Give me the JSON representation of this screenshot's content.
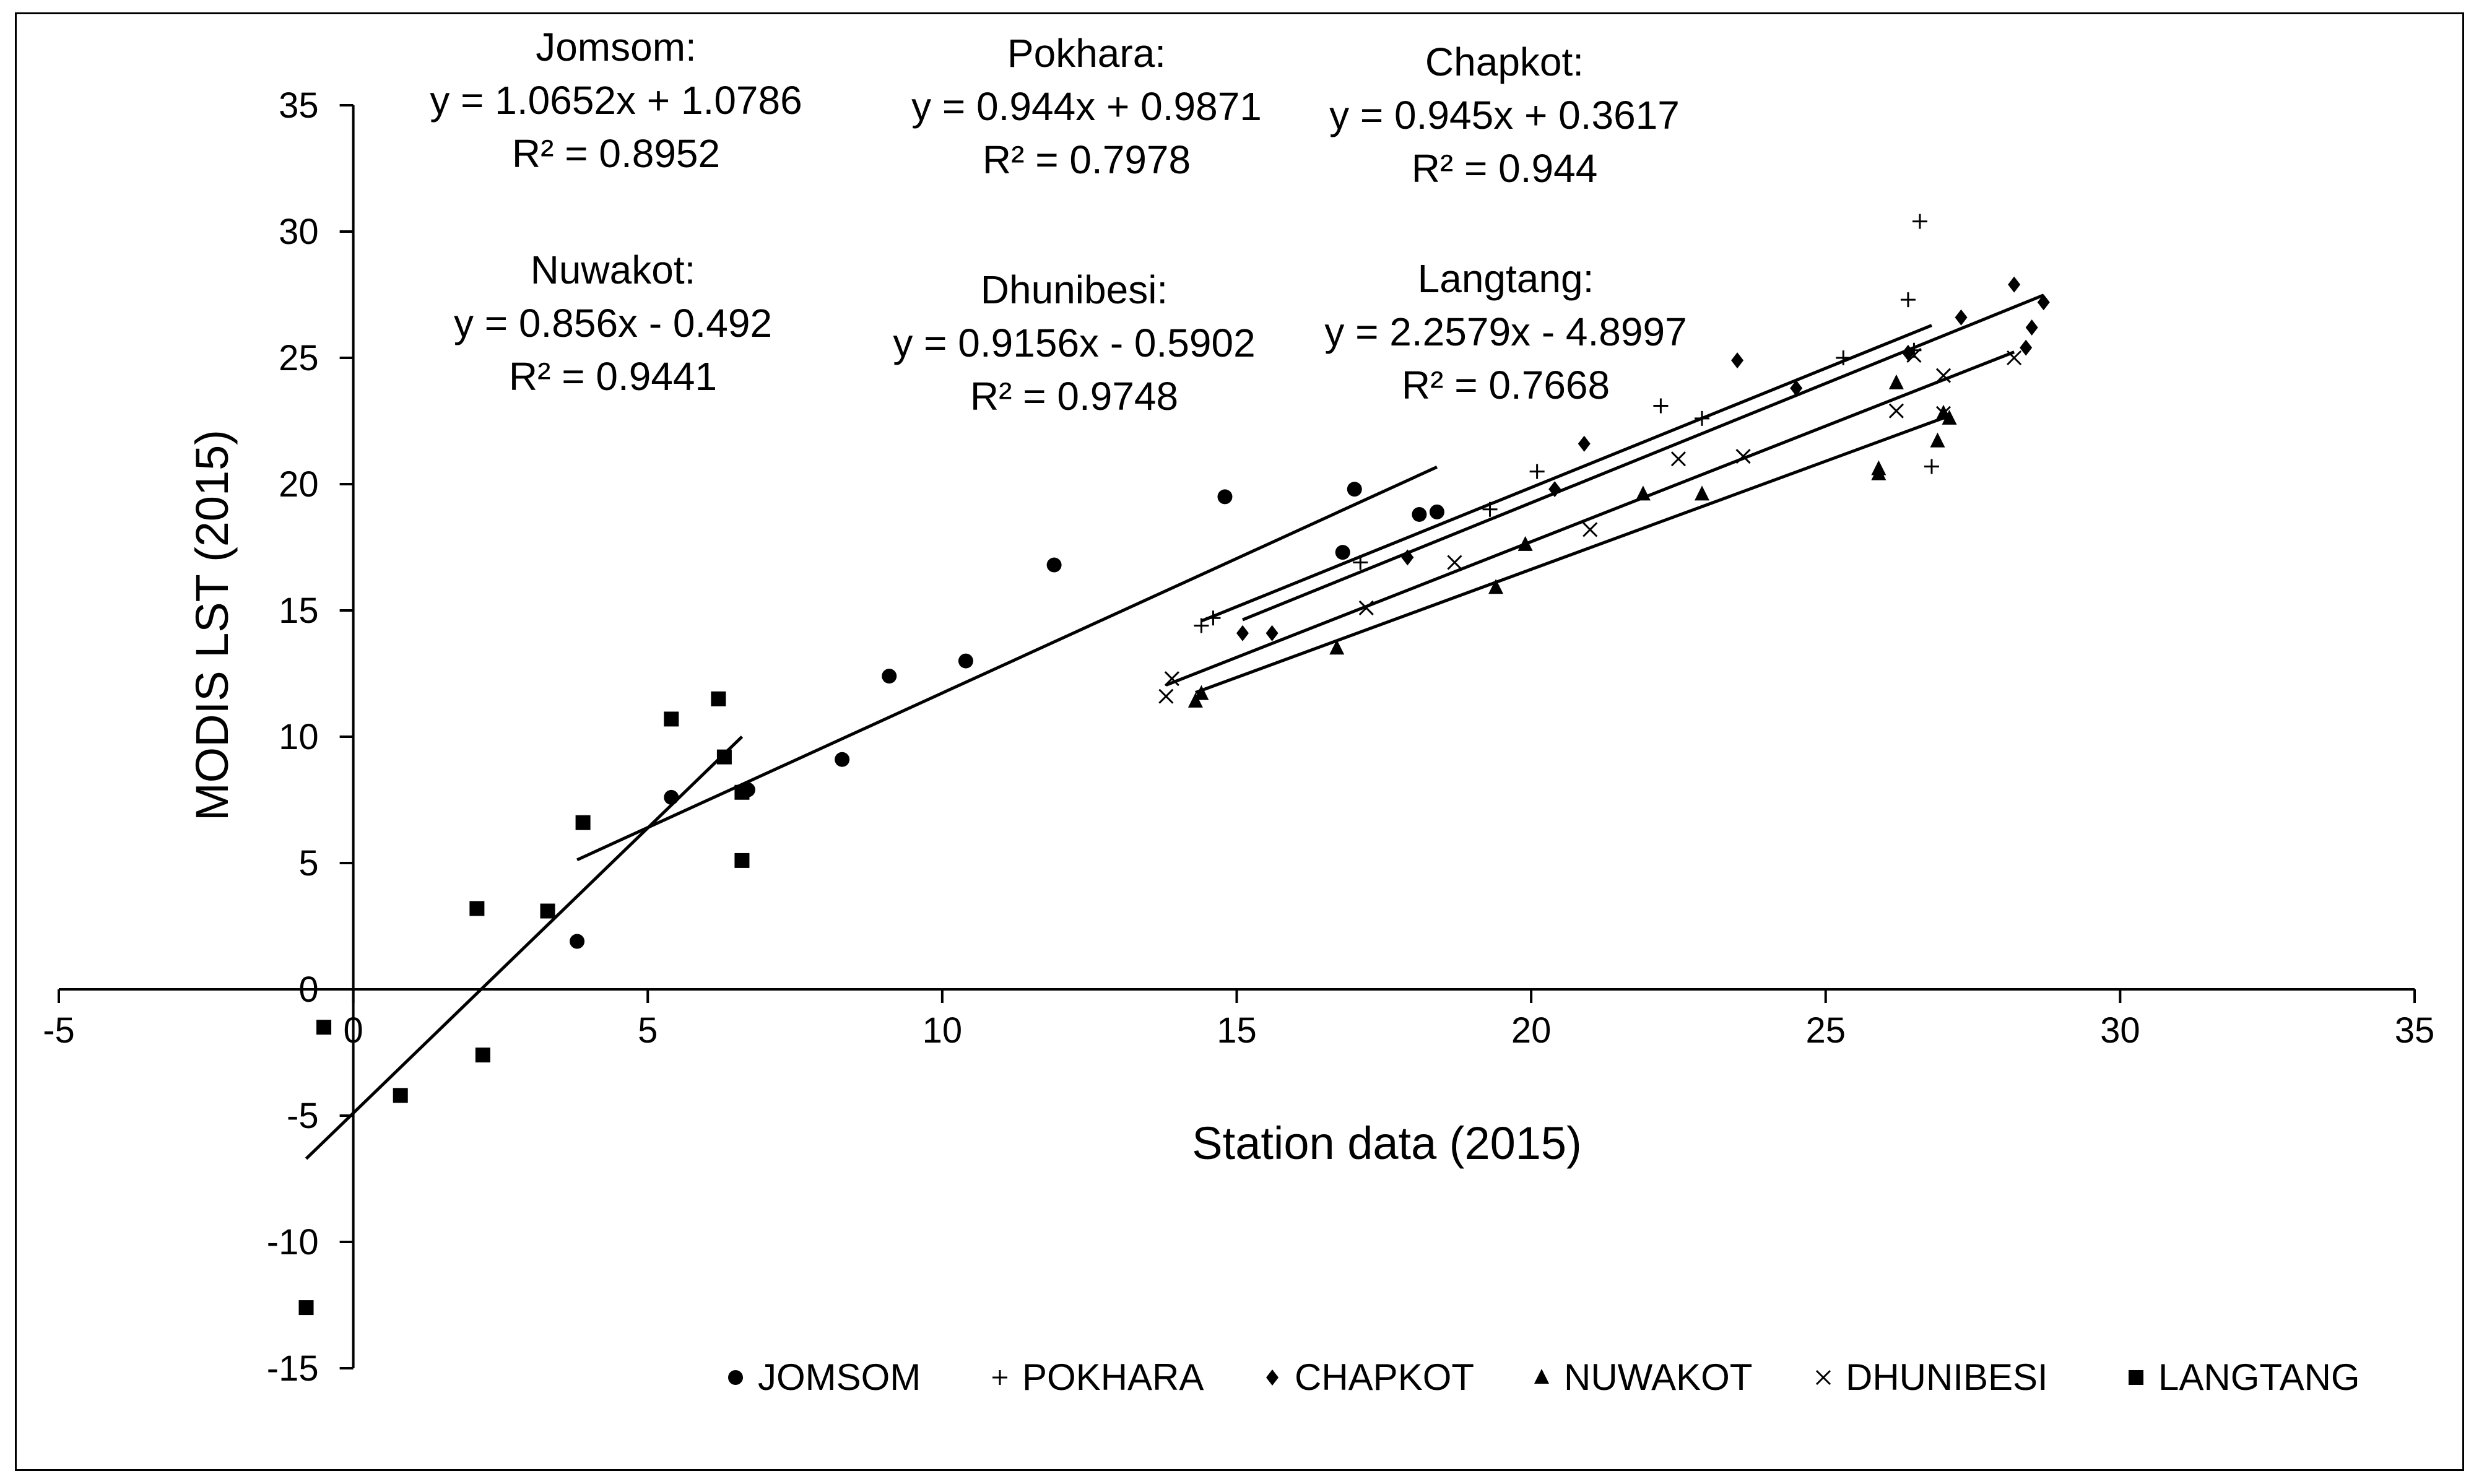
{
  "chart_data": {
    "type": "scatter",
    "title": "",
    "xlabel": "Station data (2015)",
    "ylabel": "MODIS LST (2015)",
    "xlim": [
      -5,
      35
    ],
    "ylim": [
      -15,
      35
    ],
    "x_ticks": [
      -5,
      0,
      5,
      10,
      15,
      20,
      25,
      30,
      35
    ],
    "y_ticks": [
      -15,
      -10,
      -5,
      0,
      5,
      10,
      15,
      20,
      25,
      30,
      35
    ],
    "grid": false,
    "legend_position": "bottom",
    "series": [
      {
        "name": "JOMSOM",
        "marker": "circle",
        "x": [
          3.8,
          5.4,
          6.7,
          8.3,
          9.1,
          10.4,
          11.9,
          14.8,
          16.8,
          17.0,
          18.1,
          18.4
        ],
        "y": [
          1.9,
          7.6,
          7.9,
          9.1,
          12.4,
          13.0,
          16.8,
          19.5,
          17.3,
          19.8,
          18.8,
          18.9
        ],
        "trendline": {
          "x1": 3.8,
          "x2": 18.4
        }
      },
      {
        "name": "POKHARA",
        "marker": "plus",
        "x": [
          14.4,
          14.6,
          17.1,
          19.3,
          20.1,
          22.2,
          22.9,
          25.3,
          26.4,
          26.5,
          26.6,
          26.8
        ],
        "y": [
          14.4,
          14.7,
          16.9,
          19.0,
          20.5,
          23.1,
          22.6,
          25.0,
          27.3,
          25.3,
          30.4,
          20.7
        ],
        "trendline": {
          "x1": 14.4,
          "x2": 26.8
        }
      },
      {
        "name": "CHAPKOT",
        "marker": "diamond",
        "x": [
          15.1,
          15.6,
          17.9,
          20.4,
          20.9,
          23.5,
          24.5,
          26.4,
          27.3,
          28.2,
          28.4,
          28.5,
          28.7
        ],
        "y": [
          14.1,
          14.1,
          17.1,
          19.8,
          21.6,
          24.9,
          23.8,
          25.2,
          26.6,
          27.9,
          25.4,
          26.2,
          27.2
        ],
        "trendline": {
          "x1": 15.1,
          "x2": 28.7
        }
      },
      {
        "name": "NUWAKOT",
        "marker": "triangle",
        "x": [
          14.3,
          14.4,
          16.7,
          19.4,
          19.9,
          21.9,
          22.9,
          25.9,
          25.9,
          26.2,
          26.9,
          27.0,
          27.1
        ],
        "y": [
          11.4,
          11.7,
          13.5,
          15.9,
          17.6,
          19.6,
          19.6,
          20.4,
          20.6,
          24.0,
          21.7,
          22.8,
          22.6
        ],
        "trendline": {
          "x1": 14.3,
          "x2": 27.1
        }
      },
      {
        "name": "DHUNIBESI",
        "marker": "x",
        "x": [
          13.8,
          13.9,
          17.2,
          18.7,
          21.0,
          22.5,
          23.6,
          26.2,
          26.5,
          27.0,
          27.0,
          28.2
        ],
        "y": [
          11.6,
          12.3,
          15.1,
          16.9,
          18.2,
          21.0,
          21.1,
          22.9,
          25.1,
          24.3,
          22.8,
          25.0
        ],
        "trendline": {
          "x1": 13.8,
          "x2": 28.2
        }
      },
      {
        "name": "LANGTANG",
        "marker": "square",
        "x": [
          -0.8,
          -0.5,
          0.8,
          2.1,
          2.2,
          3.3,
          3.9,
          5.4,
          6.2,
          6.3,
          6.6,
          6.6
        ],
        "y": [
          -12.6,
          -1.5,
          -4.2,
          3.2,
          -2.6,
          3.1,
          6.6,
          10.7,
          11.5,
          9.2,
          7.8,
          5.1
        ],
        "trendline": {
          "x1": -0.8,
          "x2": 6.6
        }
      }
    ],
    "annotations": [
      {
        "label": "Jomsom:",
        "equation": "y = 1.0652x + 1.0786",
        "r2": "R² = 0.8952"
      },
      {
        "label": "Pokhara:",
        "equation": "y = 0.944x + 0.9871",
        "r2": "R² = 0.7978"
      },
      {
        "label": "Chapkot:",
        "equation": "y = 0.945x + 0.3617",
        "r2": "R² = 0.944"
      },
      {
        "label": "Nuwakot:",
        "equation": "y = 0.856x - 0.492",
        "r2": "R² = 0.9441"
      },
      {
        "label": "Dhunibesi:",
        "equation": "y = 0.9156x - 0.5902",
        "r2": "R² = 0.9748"
      },
      {
        "label": "Langtang:",
        "equation": "y = 2.2579x - 4.8997",
        "r2": "R² = 0.7668"
      }
    ]
  }
}
